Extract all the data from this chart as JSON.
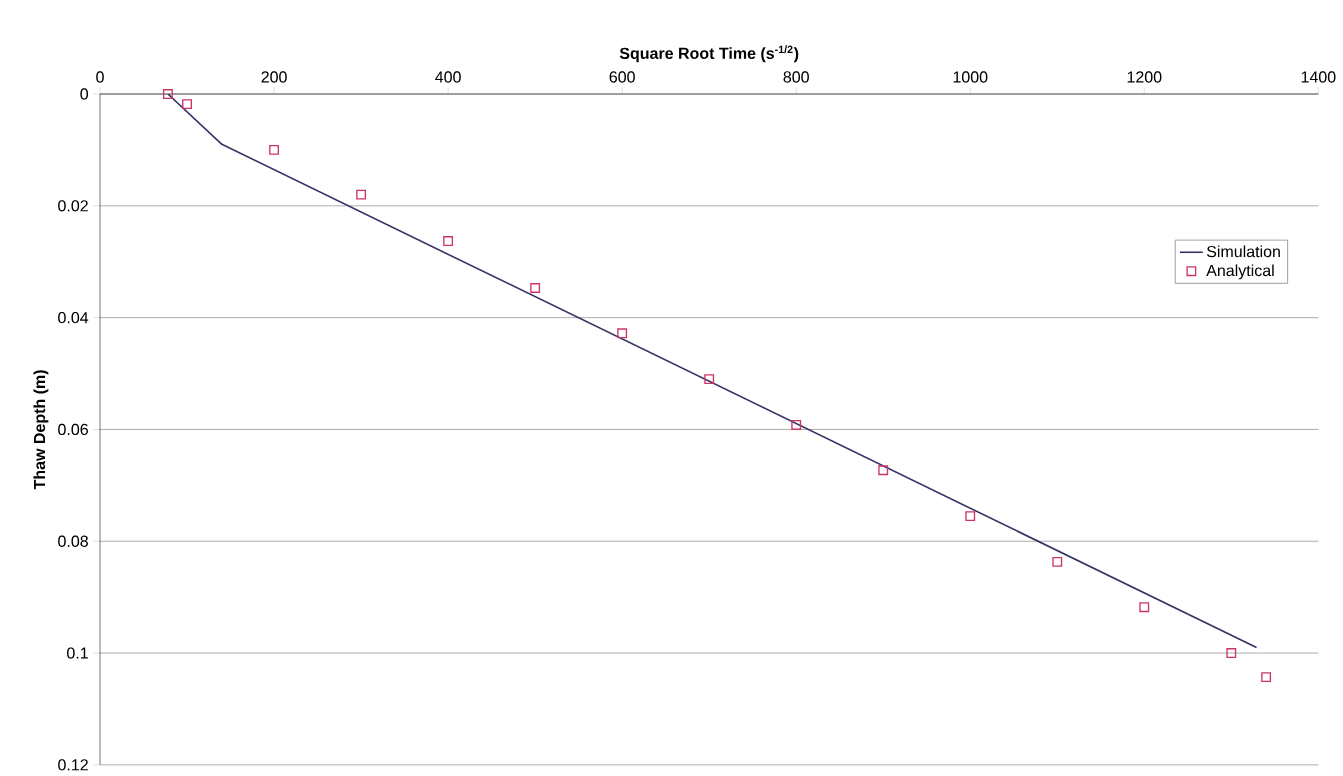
{
  "chart_data": {
    "type": "line",
    "xlabel": "Square Root Time (s$^{-1/2}$)",
    "ylabel": "Thaw Depth (m)",
    "xlim": [
      0,
      1400
    ],
    "xticks": [
      0,
      200,
      400,
      600,
      800,
      1000,
      1200,
      1400
    ],
    "ylim": [
      0.12,
      0
    ],
    "yticks": [
      0,
      0.02,
      0.04,
      0.06,
      0.08,
      0.1,
      0.12
    ],
    "grid": "y",
    "legend": "right",
    "series": [
      {
        "name": "Simulation",
        "marker": "none",
        "color": "#333366",
        "x": [
          78,
          140,
          1329
        ],
        "values": [
          0,
          0.009,
          0.099
        ]
      },
      {
        "name": "Analytical",
        "type": "scatter",
        "marker": "square",
        "color": "#cc3366",
        "x": [
          78,
          100,
          200,
          300,
          400,
          500,
          600,
          700,
          800,
          900,
          1000,
          1100,
          1200,
          1300,
          1340
        ],
        "values": [
          0,
          0.0018,
          0.01,
          0.018,
          0.0263,
          0.0347,
          0.0428,
          0.051,
          0.0592,
          0.0673,
          0.0755,
          0.0837,
          0.0918,
          0.1,
          0.1043
        ]
      }
    ]
  }
}
